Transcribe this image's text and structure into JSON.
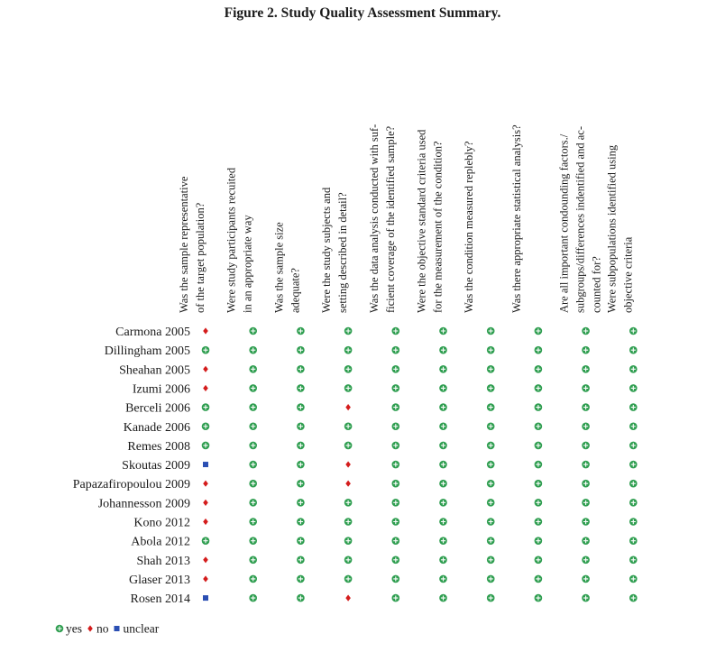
{
  "title": "Figure 2. Study Quality Assessment Summary.",
  "columns": [
    [
      "Was the sample representative",
      "of the target population?"
    ],
    [
      "Were study participants recuited",
      "in an appropriate way"
    ],
    [
      "Was the sample size",
      "adequate?"
    ],
    [
      "Were the study subjects and",
      "setting described in detail?"
    ],
    [
      "Was the data analysis conducted with suf-",
      "ficient coverage of the identified sample?"
    ],
    [
      "Were the objective standard criteria used",
      "for the measurement of the condition?"
    ],
    [
      "Was the condition measured replebly?"
    ],
    [
      "Was there appropriate statistical analysis?"
    ],
    [
      "Are all important condounding factors./",
      "subgroups/differences indentified and ac-",
      "counted for?"
    ],
    [
      "Were subpopulations identified using",
      "objective criteria"
    ]
  ],
  "rows": [
    {
      "study": "Carmona 2005",
      "ratings": [
        "no",
        "yes",
        "yes",
        "yes",
        "yes",
        "yes",
        "yes",
        "yes",
        "yes",
        "yes"
      ]
    },
    {
      "study": "Dillingham 2005",
      "ratings": [
        "yes",
        "yes",
        "yes",
        "yes",
        "yes",
        "yes",
        "yes",
        "yes",
        "yes",
        "yes"
      ]
    },
    {
      "study": "Sheahan 2005",
      "ratings": [
        "no",
        "yes",
        "yes",
        "yes",
        "yes",
        "yes",
        "yes",
        "yes",
        "yes",
        "yes"
      ]
    },
    {
      "study": "Izumi 2006",
      "ratings": [
        "no",
        "yes",
        "yes",
        "yes",
        "yes",
        "yes",
        "yes",
        "yes",
        "yes",
        "yes"
      ]
    },
    {
      "study": "Berceli 2006",
      "ratings": [
        "yes",
        "yes",
        "yes",
        "no",
        "yes",
        "yes",
        "yes",
        "yes",
        "yes",
        "yes"
      ]
    },
    {
      "study": "Kanade 2006",
      "ratings": [
        "yes",
        "yes",
        "yes",
        "yes",
        "yes",
        "yes",
        "yes",
        "yes",
        "yes",
        "yes"
      ]
    },
    {
      "study": "Remes 2008",
      "ratings": [
        "yes",
        "yes",
        "yes",
        "yes",
        "yes",
        "yes",
        "yes",
        "yes",
        "yes",
        "yes"
      ]
    },
    {
      "study": "Skoutas 2009",
      "ratings": [
        "unclear",
        "yes",
        "yes",
        "no",
        "yes",
        "yes",
        "yes",
        "yes",
        "yes",
        "yes"
      ]
    },
    {
      "study": "Papazafiropoulou 2009",
      "ratings": [
        "no",
        "yes",
        "yes",
        "no",
        "yes",
        "yes",
        "yes",
        "yes",
        "yes",
        "yes"
      ]
    },
    {
      "study": "Johannesson 2009",
      "ratings": [
        "no",
        "yes",
        "yes",
        "yes",
        "yes",
        "yes",
        "yes",
        "yes",
        "yes",
        "yes"
      ]
    },
    {
      "study": "Kono 2012",
      "ratings": [
        "no",
        "yes",
        "yes",
        "yes",
        "yes",
        "yes",
        "yes",
        "yes",
        "yes",
        "yes"
      ]
    },
    {
      "study": "Abola 2012",
      "ratings": [
        "yes",
        "yes",
        "yes",
        "yes",
        "yes",
        "yes",
        "yes",
        "yes",
        "yes",
        "yes"
      ]
    },
    {
      "study": "Shah 2013",
      "ratings": [
        "no",
        "yes",
        "yes",
        "yes",
        "yes",
        "yes",
        "yes",
        "yes",
        "yes",
        "yes"
      ]
    },
    {
      "study": "Glaser 2013",
      "ratings": [
        "no",
        "yes",
        "yes",
        "yes",
        "yes",
        "yes",
        "yes",
        "yes",
        "yes",
        "yes"
      ]
    },
    {
      "study": "Rosen 2014",
      "ratings": [
        "unclear",
        "yes",
        "yes",
        "no",
        "yes",
        "yes",
        "yes",
        "yes",
        "yes",
        "yes"
      ]
    }
  ],
  "legend": [
    {
      "label": "yes",
      "color": "#2f9e50"
    },
    {
      "label": "no",
      "color": "#d41c1c"
    },
    {
      "label": "unclear",
      "color": "#2b4fb3"
    }
  ]
}
